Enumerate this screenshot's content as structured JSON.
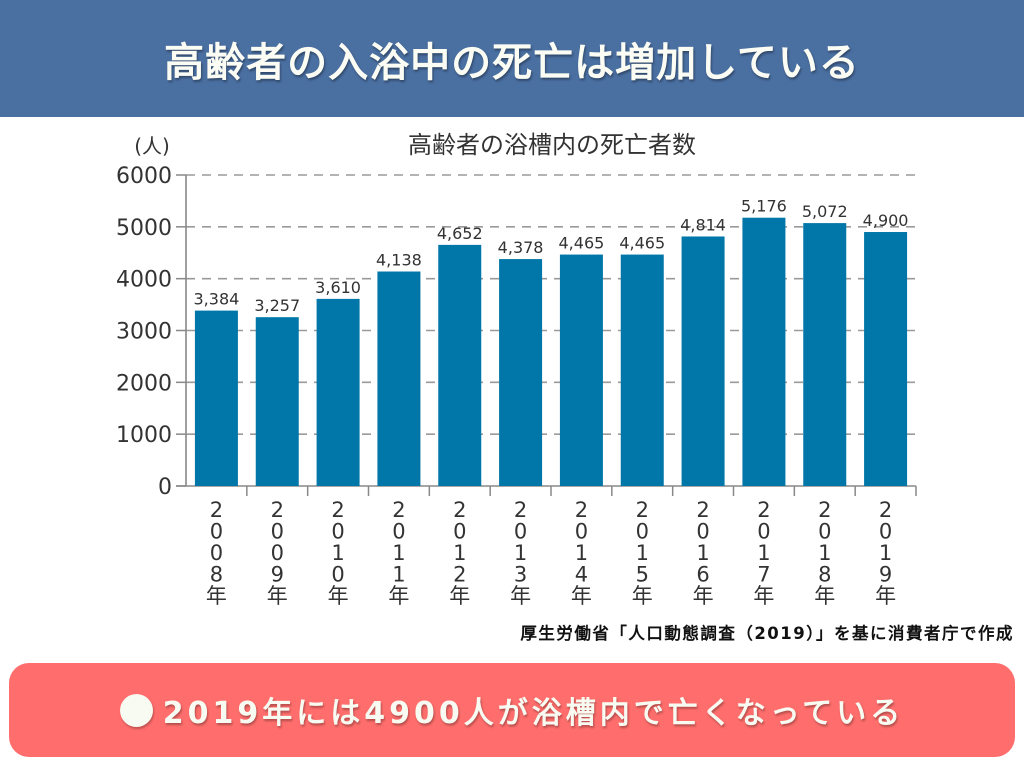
{
  "header": {
    "title": "高齢者の入浴中の死亡は増加している"
  },
  "chart_data": {
    "type": "bar",
    "title": "高齢者の浴槽内の死亡者数",
    "ylabel": "(人)",
    "xlabel": "",
    "ylim": [
      0,
      6000
    ],
    "yticks": [
      "0",
      "1000",
      "2000",
      "3000",
      "4000",
      "5000",
      "6000"
    ],
    "ytick_values": [
      0,
      1000,
      2000,
      3000,
      4000,
      5000,
      6000
    ],
    "grid": "dashed-horizontal",
    "categories": [
      "2008年",
      "2009年",
      "2010年",
      "2011年",
      "2012年",
      "2013年",
      "2014年",
      "2015年",
      "2016年",
      "2017年",
      "2018年",
      "2019年"
    ],
    "values": [
      3384,
      3257,
      3610,
      4138,
      4652,
      4378,
      4465,
      4465,
      4814,
      5176,
      5072,
      4900
    ],
    "value_labels": [
      "3,384",
      "3,257",
      "3,610",
      "4,138",
      "4,652",
      "4,378",
      "4,465",
      "4,465",
      "4,814",
      "5,176",
      "5,072",
      "4,900"
    ],
    "colors": {
      "bar": "#0077a8",
      "grid": "#9a9a9a",
      "axis": "#888888",
      "text": "#333333"
    }
  },
  "source": "厚生労働省「人口動態調査（2019）」を基に消費者庁で作成",
  "summary": {
    "text": "2019年には4900人が浴槽内で亡くなっている"
  }
}
